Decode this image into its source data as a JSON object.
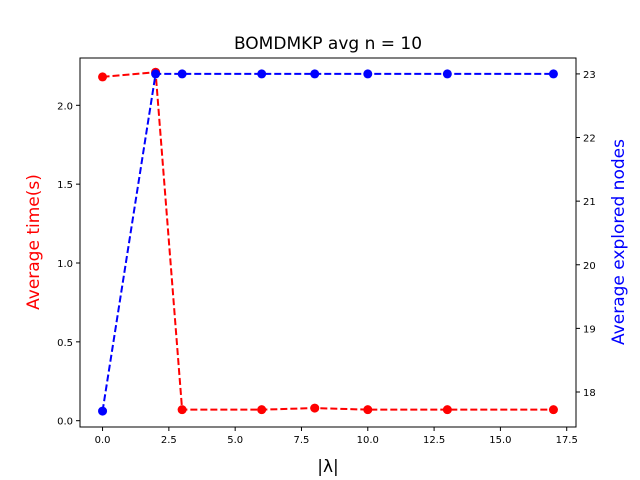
{
  "chart_data": {
    "type": "line",
    "title": "BOMDMKP avg n = 10",
    "xlabel": "|λ|",
    "ylabel_left": "Average time(s)",
    "ylabel_right": "Average explored nodes",
    "xlim": [
      -0.85,
      17.85
    ],
    "ylim_left": [
      -0.04,
      2.3
    ],
    "ylim_right": [
      17.45,
      23.25
    ],
    "x_ticks": [
      0.0,
      2.5,
      5.0,
      7.5,
      10.0,
      12.5,
      15.0,
      17.5
    ],
    "x_tick_labels": [
      "0.0",
      "2.5",
      "5.0",
      "7.5",
      "10.0",
      "12.5",
      "15.0",
      "17.5"
    ],
    "y_left_ticks": [
      0.0,
      0.5,
      1.0,
      1.5,
      2.0
    ],
    "y_left_tick_labels": [
      "0.0",
      "0.5",
      "1.0",
      "1.5",
      "2.0"
    ],
    "y_right_ticks": [
      18,
      19,
      20,
      21,
      22,
      23
    ],
    "y_right_tick_labels": [
      "18",
      "19",
      "20",
      "21",
      "22",
      "23"
    ],
    "grid": false,
    "series": [
      {
        "axis": "left",
        "color": "#ff0000",
        "line_style": "dashed",
        "marker": "circle",
        "x": [
          0,
          2,
          3,
          6,
          8,
          10,
          13,
          17
        ],
        "y": [
          2.18,
          2.21,
          0.07,
          0.07,
          0.08,
          0.07,
          0.07,
          0.07
        ]
      },
      {
        "axis": "right",
        "color": "#0000ff",
        "line_style": "dashed",
        "marker": "circle",
        "x": [
          0,
          2,
          3,
          6,
          8,
          10,
          13,
          17
        ],
        "y": [
          17.7,
          23.0,
          23.0,
          23.0,
          23.0,
          23.0,
          23.0,
          23.0
        ]
      }
    ],
    "colors": {
      "left_label": "#ff0000",
      "right_label": "#0000ff",
      "axes": "#000000"
    }
  }
}
